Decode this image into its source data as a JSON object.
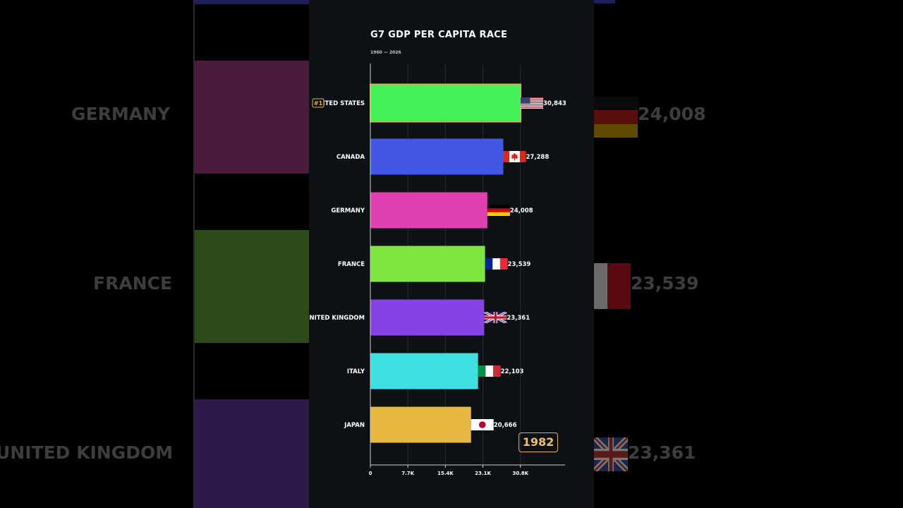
{
  "colors": {
    "panel_bg": "#0d1114",
    "accent": "#e6b34a"
  },
  "chart_data": {
    "type": "bar",
    "orientation": "horizontal",
    "title": "G7 GDP PER CAPITA RACE",
    "subtitle": "1960 — 2026",
    "year": "1982",
    "rank_badge": "#1",
    "xlim": [
      0,
      30843
    ],
    "x_ticks": [
      0,
      7700,
      15400,
      23100,
      30800
    ],
    "x_tick_labels": [
      "0",
      "7.7K",
      "15.4K",
      "23.1K",
      "30.8K"
    ],
    "grid": true,
    "categories": [
      "UNITED STATES",
      "CANADA",
      "GERMANY",
      "FRANCE",
      "UNITED KINGDOM",
      "ITALY",
      "JAPAN"
    ],
    "values": [
      30843,
      27288,
      24008,
      23539,
      23361,
      22103,
      20666
    ],
    "value_labels": [
      "30,843",
      "27,288",
      "24,008",
      "23,539",
      "23,361",
      "22,103",
      "20,666"
    ],
    "bar_colors": [
      "#42f15a",
      "#4257e6",
      "#e040b0",
      "#7fe640",
      "#8642e6",
      "#40e0e0",
      "#e6b842"
    ],
    "flags": [
      "us-flag-icon",
      "canada-flag-icon",
      "germany-flag-icon",
      "france-flag-icon",
      "uk-flag-icon",
      "italy-flag-icon",
      "japan-flag-icon"
    ]
  },
  "background": {
    "labels": [
      "GERMANY",
      "FRANCE",
      "UNITED KINGDOM"
    ],
    "values": [
      "24,008",
      "23,539",
      "23,361"
    ]
  }
}
